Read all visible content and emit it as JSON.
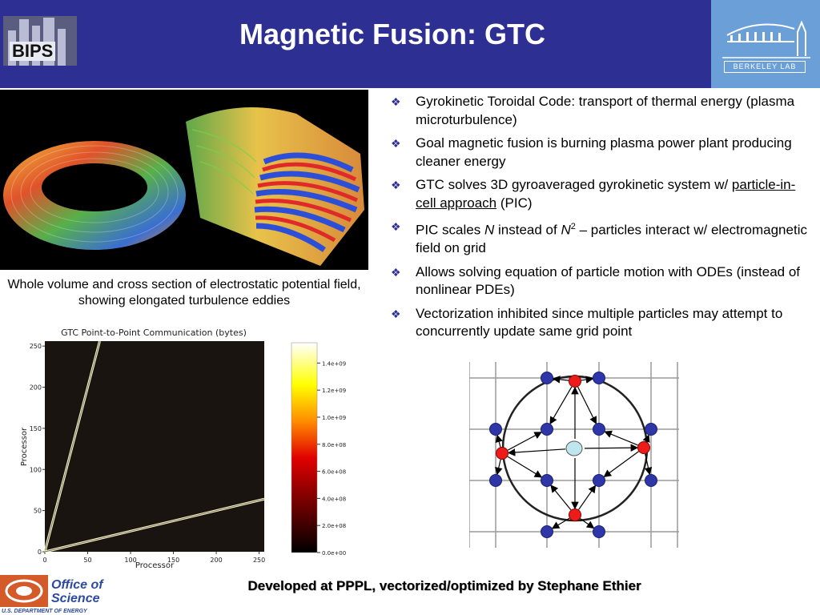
{
  "header": {
    "logo_text": "BIPS",
    "title": "Magnetic Fusion: GTC",
    "right_logo_text": "BERKELEY LAB",
    "colors": {
      "bar": "#2d3092",
      "berkeley": "#6a9fd8"
    }
  },
  "visualization": {
    "caption": "Whole volume and cross section of electrostatic potential field, showing elongated turbulence eddies"
  },
  "bullets": {
    "marker_icon": "diamond-bullet-icon",
    "items": [
      {
        "text": "Gyrokinetic Toroidal Code: transport of thermal energy (plasma microturbulence)"
      },
      {
        "text": "Goal magnetic fusion is burning plasma power plant producing cleaner energy"
      },
      {
        "pre": "GTC solves 3D gyroaveraged gyrokinetic system w/ ",
        "link": "particle-in-cell approach",
        "post": " (PIC)"
      },
      {
        "pre": "PIC scales ",
        "n1": "N",
        "mid": " instead of ",
        "n2": "N",
        "sup": "2",
        "post": " – particles interact w/ electromagnetic field on grid"
      },
      {
        "text": "Allows solving equation of particle motion with ODEs (instead of nonlinear PDEs)"
      },
      {
        "text": "Vectorization inhibited since multiple particles may attempt to concurrently update same grid point"
      }
    ]
  },
  "chart_data": {
    "type": "heatmap",
    "title": "GTC Point-to-Point Communication (bytes)",
    "xlabel": "Processor",
    "ylabel": "Processor",
    "xlim": [
      0,
      256
    ],
    "ylim": [
      0,
      256
    ],
    "xticks": [
      0,
      50,
      100,
      150,
      200,
      250
    ],
    "yticks": [
      0,
      50,
      100,
      150,
      200,
      250
    ],
    "colorbar": {
      "labels": [
        "0.0e+00",
        "2.0e+08",
        "4.0e+08",
        "6.0e+08",
        "8.0e+08",
        "1.0e+09",
        "1.2e+09",
        "1.4e+09"
      ],
      "values": [
        0,
        200000000,
        400000000,
        600000000,
        800000000,
        1000000000,
        1200000000,
        1400000000
      ],
      "max": 1550000000
    },
    "series": [
      {
        "points": [
          [
            0,
            0
          ],
          [
            64,
            256
          ]
        ]
      },
      {
        "points": [
          [
            0,
            0
          ],
          [
            256,
            64
          ]
        ]
      }
    ]
  },
  "diagram": {
    "grid_nodes": [
      [
        1,
        0
      ],
      [
        2,
        0
      ],
      [
        0,
        1
      ],
      [
        1,
        1
      ],
      [
        2,
        1
      ],
      [
        3,
        1
      ],
      [
        0,
        2
      ],
      [
        1,
        2
      ],
      [
        2,
        2
      ],
      [
        3,
        2
      ],
      [
        1,
        3
      ],
      [
        2,
        3
      ]
    ],
    "ring_nodes": [
      "top",
      "left",
      "right",
      "bottom"
    ]
  },
  "footer": {
    "logo_line1": "Office of",
    "logo_line2": "Science",
    "logo_line3": "U.S. DEPARTMENT OF ENERGY",
    "text": "Developed at PPPL, vectorized/optimized by Stephane Ethier"
  }
}
